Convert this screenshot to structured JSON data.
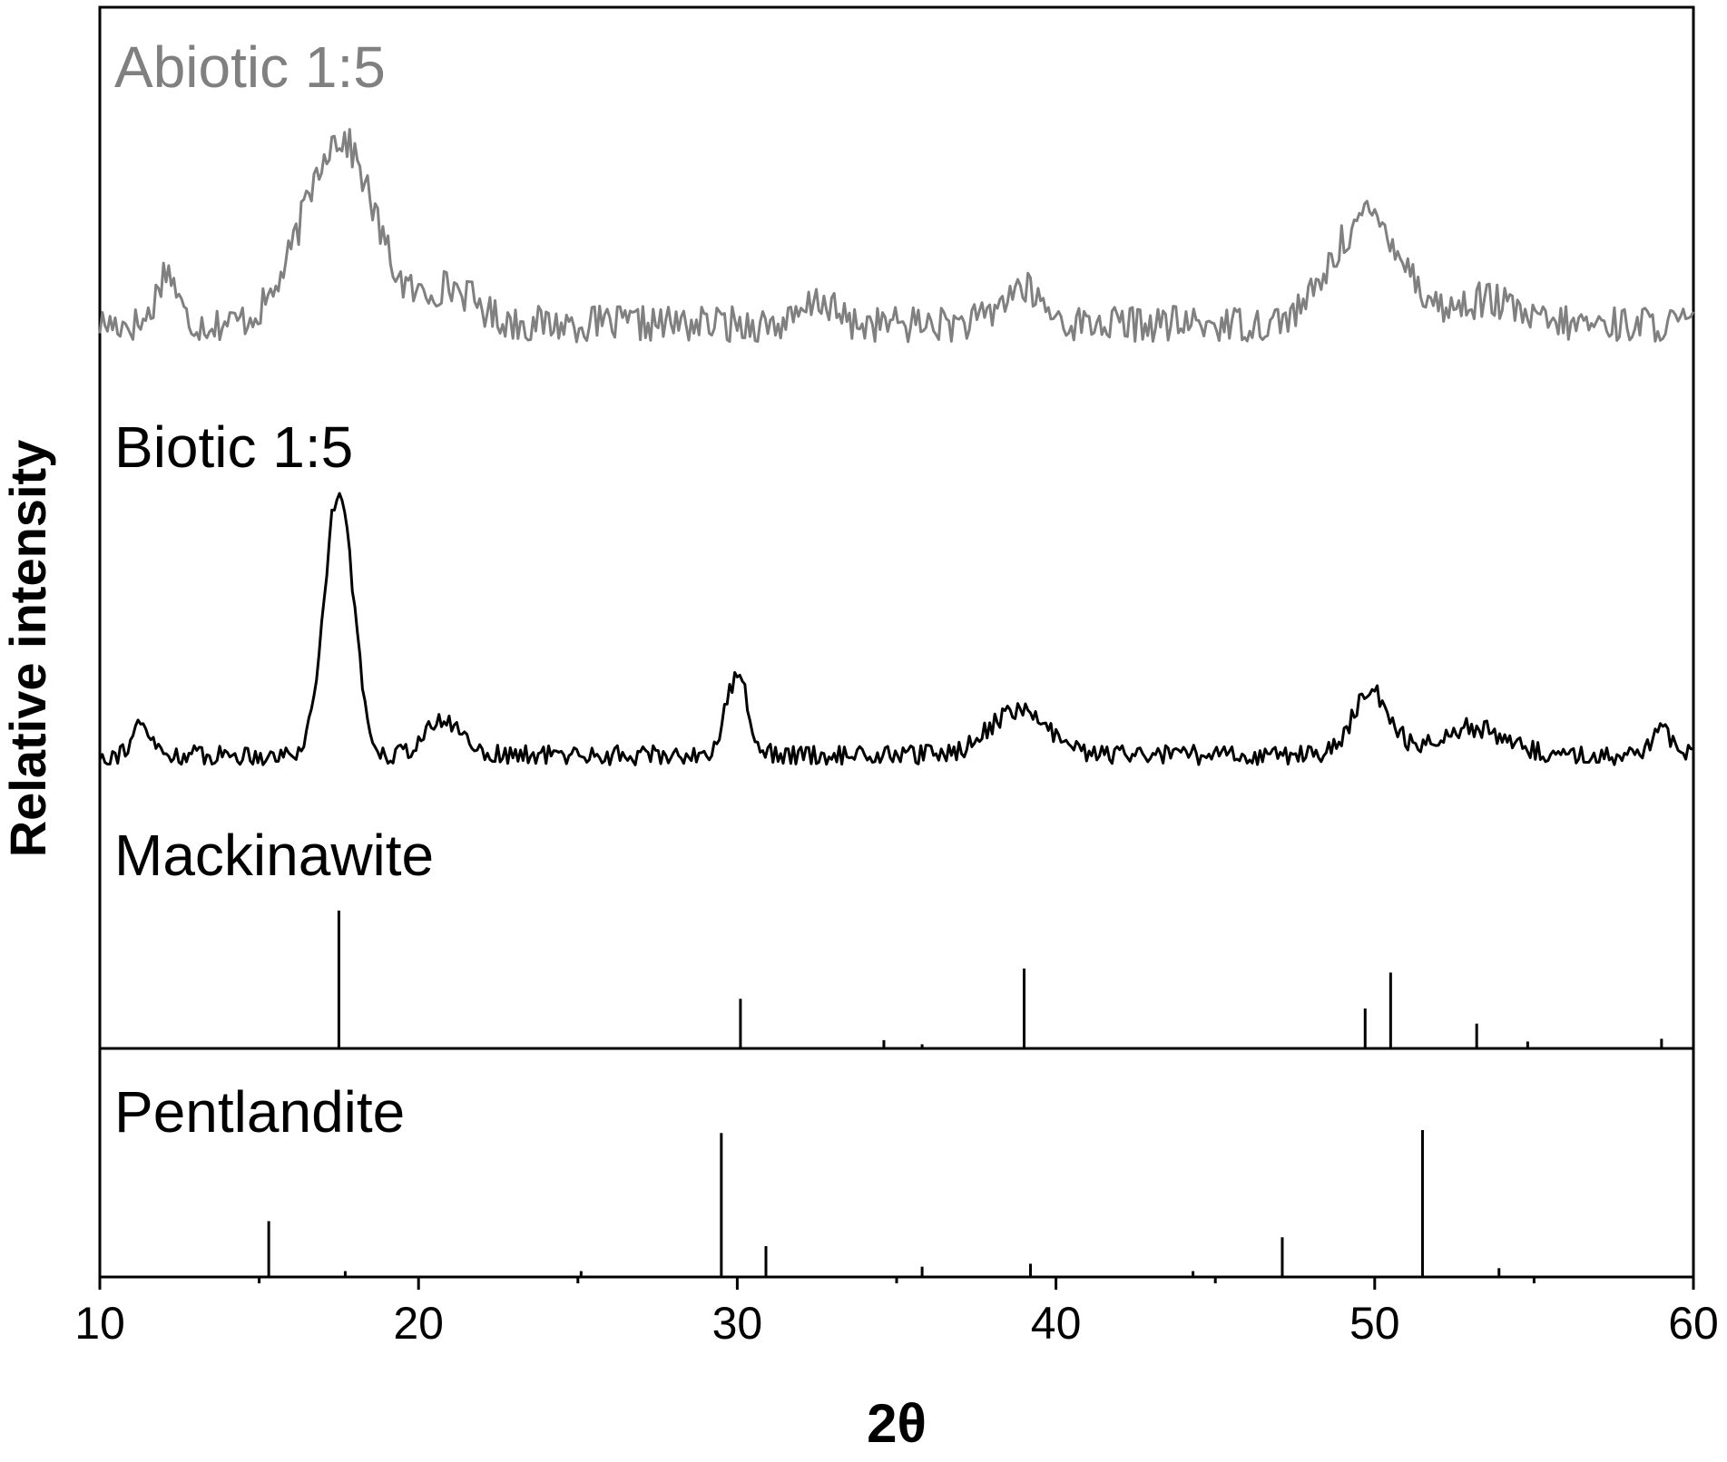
{
  "chart_data": {
    "type": "line",
    "title": "",
    "xlabel": "2θ",
    "ylabel": "Relative intensity",
    "xlim": [
      10,
      60
    ],
    "x_ticks": [
      "10",
      "20",
      "30",
      "40",
      "50",
      "60"
    ],
    "grid": false,
    "colors": {
      "abiotic": "#808080",
      "biotic": "#000000",
      "reference": "#000000",
      "axis": "#000000"
    },
    "series": [
      {
        "name": "Abiotic 1:5",
        "noise_amplitude": 0.06,
        "baseline": 0.16,
        "peaks": [
          {
            "x": 12.1,
            "height": 0.18,
            "width": 0.3
          },
          {
            "x": 17.5,
            "height": 0.62,
            "width": 1.1
          },
          {
            "x": 21.0,
            "height": 0.12,
            "width": 0.8
          },
          {
            "x": 32.6,
            "height": 0.08,
            "width": 0.4
          },
          {
            "x": 38.9,
            "height": 0.12,
            "width": 0.6
          },
          {
            "x": 49.8,
            "height": 0.36,
            "width": 1.1
          },
          {
            "x": 53.5,
            "height": 0.08,
            "width": 0.8
          }
        ]
      },
      {
        "name": "Biotic 1:5",
        "noise_amplitude": 0.035,
        "baseline": 0.05,
        "peaks": [
          {
            "x": 11.3,
            "height": 0.1,
            "width": 0.3
          },
          {
            "x": 17.5,
            "height": 0.95,
            "width": 0.45
          },
          {
            "x": 20.8,
            "height": 0.12,
            "width": 0.6
          },
          {
            "x": 30.0,
            "height": 0.28,
            "width": 0.35
          },
          {
            "x": 38.8,
            "height": 0.16,
            "width": 0.9
          },
          {
            "x": 49.9,
            "height": 0.22,
            "width": 0.6
          },
          {
            "x": 53.0,
            "height": 0.1,
            "width": 1.0
          },
          {
            "x": 59.0,
            "height": 0.08,
            "width": 0.3
          }
        ]
      },
      {
        "name": "Mackinawite",
        "type": "stick",
        "peaks": [
          {
            "x": 17.5,
            "intensity": 1.0
          },
          {
            "x": 30.1,
            "intensity": 0.36
          },
          {
            "x": 34.6,
            "intensity": 0.06
          },
          {
            "x": 35.8,
            "intensity": 0.03
          },
          {
            "x": 39.0,
            "intensity": 0.58
          },
          {
            "x": 49.7,
            "intensity": 0.29
          },
          {
            "x": 50.5,
            "intensity": 0.55
          },
          {
            "x": 53.2,
            "intensity": 0.18
          },
          {
            "x": 54.8,
            "intensity": 0.05
          },
          {
            "x": 59.0,
            "intensity": 0.07
          }
        ]
      },
      {
        "name": "Pentlandite",
        "type": "stick",
        "peaks": [
          {
            "x": 15.3,
            "intensity": 0.38
          },
          {
            "x": 17.7,
            "intensity": 0.04
          },
          {
            "x": 25.1,
            "intensity": 0.04
          },
          {
            "x": 29.5,
            "intensity": 0.98
          },
          {
            "x": 30.9,
            "intensity": 0.21
          },
          {
            "x": 35.8,
            "intensity": 0.07
          },
          {
            "x": 39.2,
            "intensity": 0.09
          },
          {
            "x": 44.3,
            "intensity": 0.04
          },
          {
            "x": 47.1,
            "intensity": 0.27
          },
          {
            "x": 51.5,
            "intensity": 1.0
          },
          {
            "x": 53.9,
            "intensity": 0.06
          }
        ]
      }
    ]
  }
}
